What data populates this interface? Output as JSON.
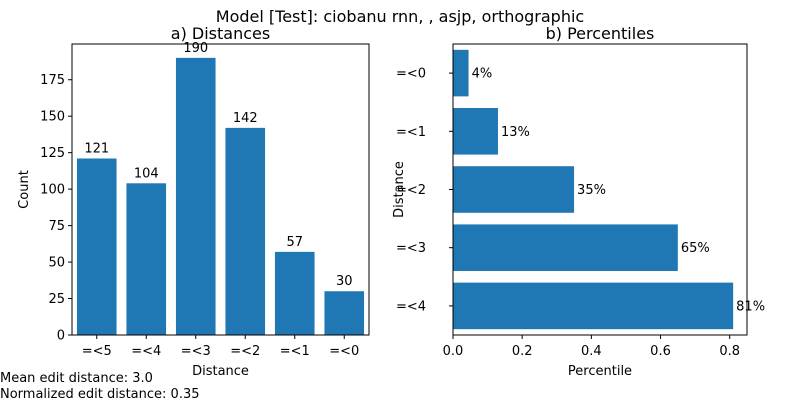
{
  "figure": {
    "suptitle": "Model [Test]: ciobanu rnn, , asjp, orthographic",
    "footer_lines": [
      "Mean edit distance: 3.0",
      "Normalized edit distance: 0.35"
    ],
    "bar_color": "#1f77b4"
  },
  "chart_data": [
    {
      "type": "bar",
      "title": "a) Distances",
      "xlabel": "Distance",
      "ylabel": "Count",
      "categories": [
        "=<5",
        "=<4",
        "=<3",
        "=<2",
        "=<1",
        "=<0"
      ],
      "values": [
        121,
        104,
        190,
        142,
        57,
        30
      ],
      "data_labels": [
        "121",
        "104",
        "190",
        "142",
        "57",
        "30"
      ],
      "yticks": [
        "0",
        "25",
        "50",
        "75",
        "100",
        "125",
        "150",
        "175"
      ],
      "ylim": [
        0,
        199.5
      ],
      "grid": false,
      "legend": "none"
    },
    {
      "type": "bar",
      "orientation": "horizontal",
      "title": "b) Percentiles",
      "xlabel": "Percentile",
      "ylabel": "Distance",
      "categories": [
        "=<0",
        "=<1",
        "=<2",
        "=<3",
        "=<4"
      ],
      "values": [
        0.045,
        0.13,
        0.35,
        0.65,
        0.81
      ],
      "data_labels": [
        "4%",
        "13%",
        "35%",
        "65%",
        "81%"
      ],
      "xticks": [
        "0.0",
        "0.2",
        "0.4",
        "0.6",
        "0.8"
      ],
      "xlim": [
        0,
        0.85
      ],
      "grid": false,
      "legend": "none"
    }
  ]
}
